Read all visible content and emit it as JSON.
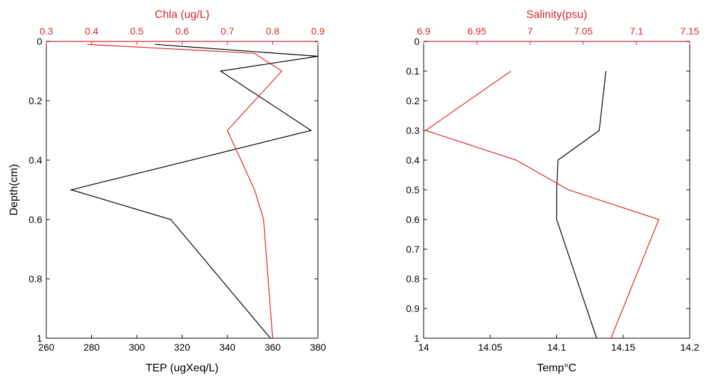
{
  "chart_data": [
    {
      "type": "line",
      "ylabel": "Depth(cm)",
      "ylim": [
        0,
        1
      ],
      "y_reversed": true,
      "y_ticks": [
        0,
        0.2,
        0.4,
        0.6,
        0.8,
        1
      ],
      "y_tick_labels": [
        "0",
        "0.2",
        "0.4",
        "0.6",
        "0.8",
        "1"
      ],
      "bottom_axis": {
        "label": "TEP (ugXeq/L)",
        "xlim": [
          260,
          380
        ],
        "ticks": [
          260,
          280,
          300,
          320,
          340,
          360,
          380
        ],
        "tick_labels": [
          "260",
          "280",
          "300",
          "320",
          "340",
          "360",
          "380"
        ],
        "color": "#000000"
      },
      "top_axis": {
        "label": "Chla (ug/L)",
        "xlim": [
          0.3,
          0.9
        ],
        "ticks": [
          0.3,
          0.4,
          0.5,
          0.6,
          0.7,
          0.8,
          0.9
        ],
        "tick_labels": [
          "0.3",
          "0.4",
          "0.5",
          "0.6",
          "0.7",
          "0.8",
          "0.9"
        ],
        "color": "#d62728"
      },
      "series": [
        {
          "axis": "bottom",
          "color": "#000000",
          "x": [
            308,
            380,
            337,
            377,
            271,
            315,
            359
          ],
          "y": [
            0.01,
            0.05,
            0.1,
            0.3,
            0.5,
            0.6,
            1.0
          ]
        },
        {
          "axis": "top",
          "color": "#d62728",
          "x": [
            0.39,
            0.76,
            0.82,
            0.7,
            0.76,
            0.78,
            0.8
          ],
          "y": [
            0.01,
            0.04,
            0.1,
            0.3,
            0.5,
            0.6,
            1.0
          ]
        }
      ]
    },
    {
      "type": "line",
      "ylabel": "",
      "ylim": [
        0,
        1
      ],
      "y_reversed": true,
      "y_ticks": [
        0,
        0.1,
        0.2,
        0.3,
        0.4,
        0.5,
        0.6,
        0.7,
        0.8,
        0.9,
        1
      ],
      "y_tick_labels": [
        "0",
        "0.1",
        "0.2",
        "0.3",
        "0.4",
        "0.5",
        "0.6",
        "0.7",
        "0.8",
        "0.9",
        "1"
      ],
      "bottom_axis": {
        "label": "Temp°C",
        "xlim": [
          14,
          14.2
        ],
        "ticks": [
          14,
          14.05,
          14.1,
          14.15,
          14.2
        ],
        "tick_labels": [
          "14",
          "14.05",
          "14.1",
          "14.15",
          "14.2"
        ],
        "color": "#000000"
      },
      "top_axis": {
        "label": "Salinity(psu)",
        "xlim": [
          6.9,
          7.15
        ],
        "ticks": [
          6.9,
          6.95,
          7,
          7.05,
          7.1,
          7.15
        ],
        "tick_labels": [
          "6.9",
          "6.95",
          "7",
          "7.05",
          "7.1",
          "7.15"
        ],
        "color": "#d62728"
      },
      "series": [
        {
          "axis": "bottom",
          "color": "#000000",
          "x": [
            14.137,
            14.132,
            14.101,
            14.1,
            14.1,
            14.13
          ],
          "y": [
            0.1,
            0.3,
            0.4,
            0.5,
            0.6,
            1.0
          ]
        },
        {
          "axis": "top",
          "color": "#d62728",
          "x": [
            6.982,
            6.902,
            6.987,
            7.036,
            7.121,
            7.076
          ],
          "y": [
            0.1,
            0.3,
            0.4,
            0.5,
            0.6,
            1.0
          ]
        }
      ]
    }
  ]
}
